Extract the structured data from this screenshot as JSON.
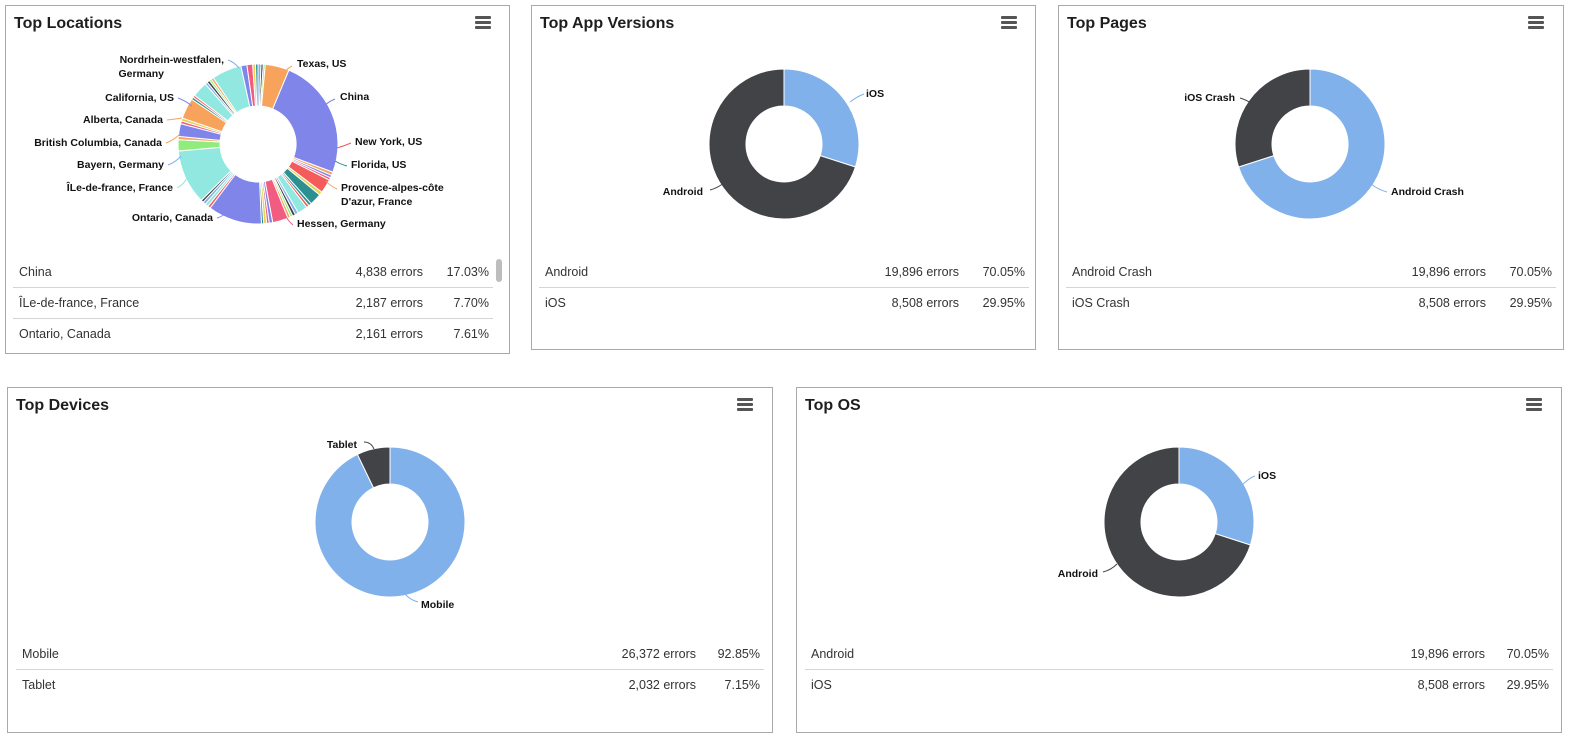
{
  "colors": {
    "dark": "#424347",
    "blue": "#80b1eb",
    "palette": [
      "#80b1eb",
      "#424347",
      "#90ed7d",
      "#f7a35c",
      "#8085e9",
      "#f15c80",
      "#e4d354",
      "#2b908f",
      "#f45b5b",
      "#91e8e1"
    ]
  },
  "panels": {
    "locations": {
      "title": "Top Locations",
      "menu_icon": "hamburger-menu-icon",
      "labels": [
        "Texas, US",
        "China",
        "New York, US",
        "Florida, US",
        "Provence-alpes-côte",
        "D'azur, France",
        "Hessen, Germany",
        "Ontario, Canada",
        "ÎLe-de-france, France",
        "Bayern, Germany",
        "British Columbia, Canada",
        "Alberta, Canada",
        "California, US",
        "Nordrhein-westfalen,",
        "Germany"
      ],
      "rows": [
        {
          "name": "China",
          "errors": "4,838 errors",
          "pct": "17.03%"
        },
        {
          "name": "ÎLe-de-france, France",
          "errors": "2,187 errors",
          "pct": "7.70%"
        },
        {
          "name": "Ontario, Canada",
          "errors": "2,161 errors",
          "pct": "7.61%"
        }
      ]
    },
    "app_versions": {
      "title": "Top App Versions",
      "menu_icon": "hamburger-menu-icon",
      "rows": [
        {
          "name": "Android",
          "errors": "19,896 errors",
          "pct": "70.05%"
        },
        {
          "name": "iOS",
          "errors": "8,508 errors",
          "pct": "29.95%"
        }
      ]
    },
    "pages": {
      "title": "Top Pages",
      "menu_icon": "hamburger-menu-icon",
      "rows": [
        {
          "name": "Android Crash",
          "errors": "19,896 errors",
          "pct": "70.05%"
        },
        {
          "name": "iOS Crash",
          "errors": "8,508 errors",
          "pct": "29.95%"
        }
      ]
    },
    "devices": {
      "title": "Top Devices",
      "menu_icon": "hamburger-menu-icon",
      "rows": [
        {
          "name": "Mobile",
          "errors": "26,372 errors",
          "pct": "92.85%"
        },
        {
          "name": "Tablet",
          "errors": "2,032 errors",
          "pct": "7.15%"
        }
      ]
    },
    "os": {
      "title": "Top OS",
      "menu_icon": "hamburger-menu-icon",
      "rows": [
        {
          "name": "Android",
          "errors": "19,896 errors",
          "pct": "70.05%"
        },
        {
          "name": "iOS",
          "errors": "8,508 errors",
          "pct": "29.95%"
        }
      ]
    }
  },
  "chart_data": [
    {
      "type": "pie",
      "title": "Top Locations",
      "series": [
        {
          "name": "Errors",
          "points": [
            {
              "label": "China",
              "value": 4838,
              "pct": 17.03
            },
            {
              "label": "ÎLe-de-france, France",
              "value": 2187,
              "pct": 7.7
            },
            {
              "label": "Ontario, Canada",
              "value": 2161,
              "pct": 7.61
            },
            {
              "label": "Texas, US",
              "value": 960,
              "pct": 3.4
            },
            {
              "label": "New York, US",
              "value": 560,
              "pct": 2.0
            },
            {
              "label": "Florida, US",
              "value": 480,
              "pct": 1.7
            },
            {
              "label": "Provence-alpes-côte D'azur, France",
              "value": 400,
              "pct": 1.4
            },
            {
              "label": "Hessen, Germany",
              "value": 620,
              "pct": 2.2
            },
            {
              "label": "Bayern, Germany",
              "value": 450,
              "pct": 1.6
            },
            {
              "label": "British Columbia, Canada",
              "value": 510,
              "pct": 1.8
            },
            {
              "label": "Alberta, Canada",
              "value": 830,
              "pct": 2.9
            },
            {
              "label": "California, US",
              "value": 620,
              "pct": 2.2
            },
            {
              "label": "Nordrhein-westfalen, Germany",
              "value": 1190,
              "pct": 4.2
            }
          ]
        }
      ]
    },
    {
      "type": "pie",
      "title": "Top App Versions",
      "series": [
        {
          "name": "Errors",
          "points": [
            {
              "label": "iOS",
              "value": 8508,
              "pct": 29.95
            },
            {
              "label": "Android",
              "value": 19896,
              "pct": 70.05
            }
          ]
        }
      ]
    },
    {
      "type": "pie",
      "title": "Top Pages",
      "series": [
        {
          "name": "Errors",
          "points": [
            {
              "label": "Android Crash",
              "value": 19896,
              "pct": 70.05
            },
            {
              "label": "iOS Crash",
              "value": 8508,
              "pct": 29.95
            }
          ]
        }
      ]
    },
    {
      "type": "pie",
      "title": "Top Devices",
      "series": [
        {
          "name": "Errors",
          "points": [
            {
              "label": "Mobile",
              "value": 26372,
              "pct": 92.85
            },
            {
              "label": "Tablet",
              "value": 2032,
              "pct": 7.15
            }
          ]
        }
      ]
    },
    {
      "type": "pie",
      "title": "Top OS",
      "series": [
        {
          "name": "Errors",
          "points": [
            {
              "label": "iOS",
              "value": 8508,
              "pct": 29.95
            },
            {
              "label": "Android",
              "value": 19896,
              "pct": 70.05
            }
          ]
        }
      ]
    }
  ]
}
